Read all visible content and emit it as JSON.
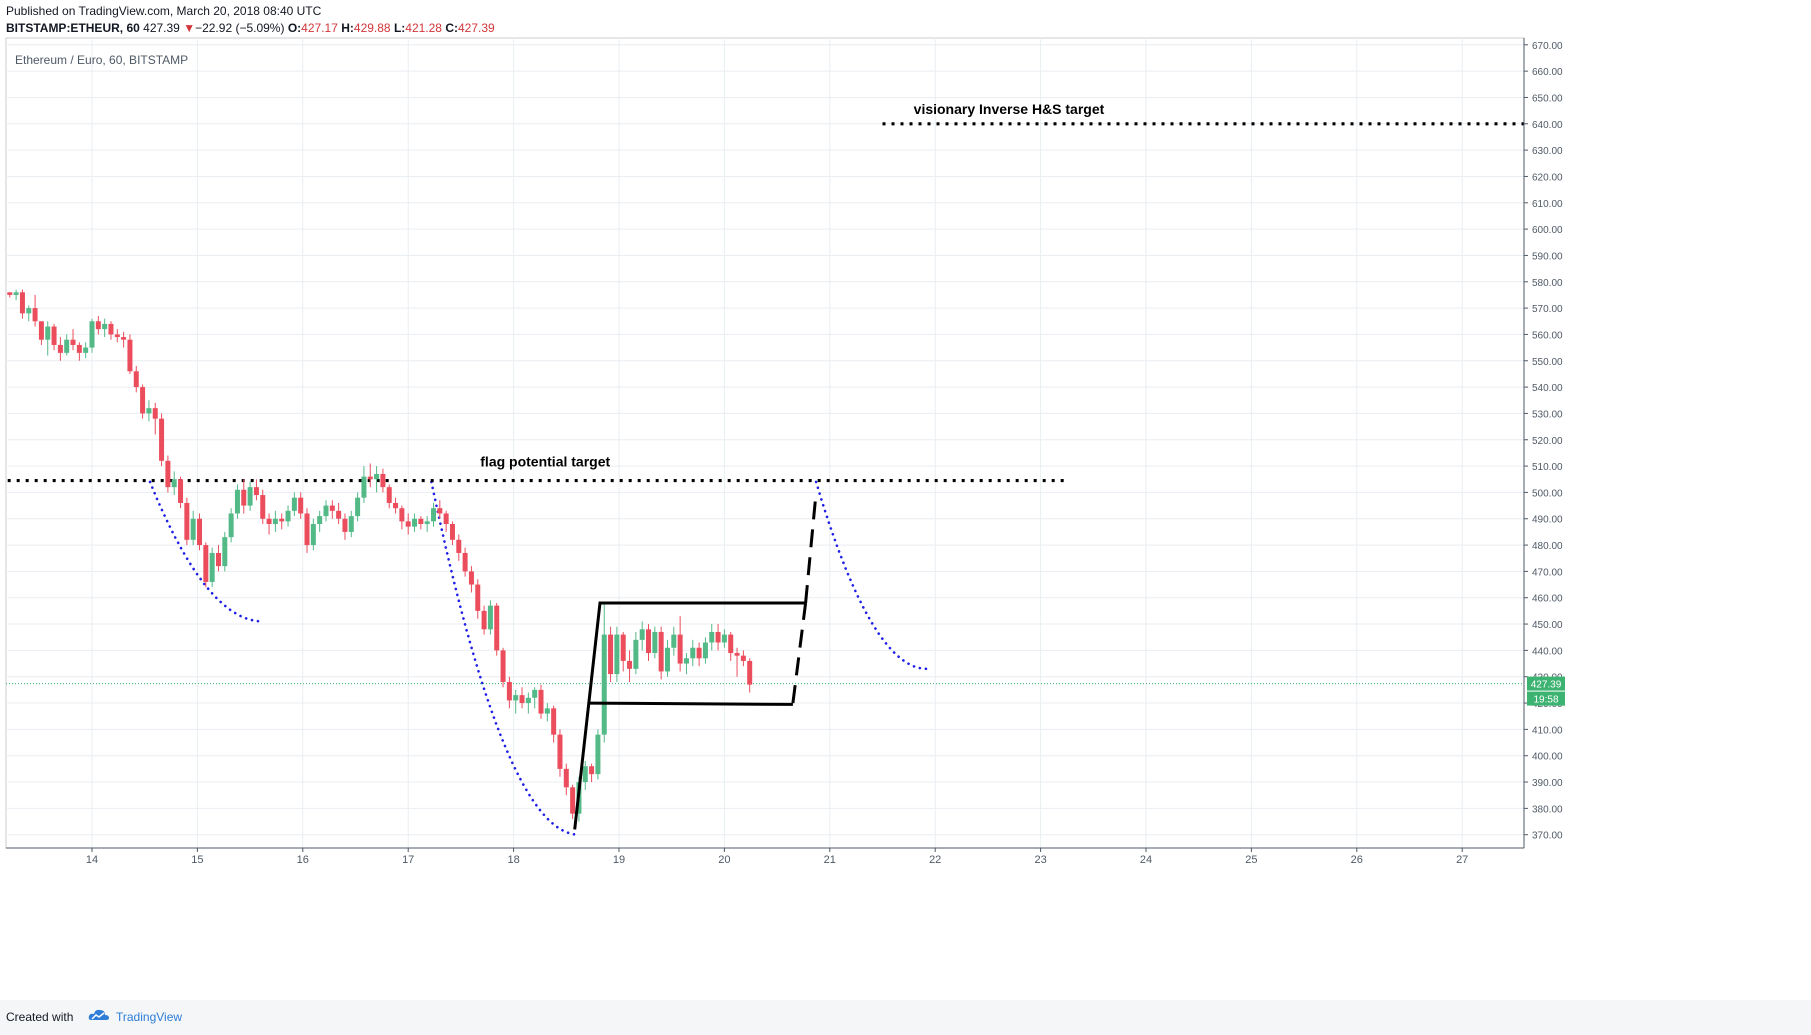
{
  "header": {
    "published": "Published on TradingView.com, March 20, 2018 08:40 UTC",
    "symbol": "BITSTAMP:ETHEUR, 60",
    "last": "427.39",
    "change_arrow": "▼",
    "change": "−22.92 (−5.09%)",
    "o_label": "O:",
    "o": "427.17",
    "h_label": "H:",
    "h": "429.88",
    "l_label": "L:",
    "l": "421.28",
    "c_label": "C:",
    "c": "427.39"
  },
  "footer": {
    "created_with": "Created with",
    "brand": "TradingView",
    "logo_icon": "tradingview-cloud-icon"
  },
  "colors": {
    "up": "#53b987",
    "down": "#eb4d5c",
    "grid": "#e9eef2",
    "axis_text": "#4f5966",
    "dotted_blue": "#1f1fe6",
    "drawing": "#000000",
    "price_tag": "#3cb371"
  },
  "chart_data": {
    "type": "candlestick",
    "title": "Ethereum / Euro, 60, BITSTAMP",
    "x_ticks": [
      "14",
      "15",
      "16",
      "17",
      "18",
      "19",
      "20",
      "21",
      "22",
      "23",
      "24",
      "25",
      "26",
      "27"
    ],
    "y_ticks": [
      "370.00",
      "380.00",
      "390.00",
      "400.00",
      "410.00",
      "420.00",
      "430.00",
      "440.00",
      "450.00",
      "460.00",
      "470.00",
      "480.00",
      "490.00",
      "500.00",
      "510.00",
      "520.00",
      "530.00",
      "540.00",
      "550.00",
      "560.00",
      "570.00",
      "580.00",
      "590.00",
      "600.00",
      "610.00",
      "620.00",
      "630.00",
      "640.00",
      "650.00",
      "660.00",
      "670.00"
    ],
    "ylim": [
      364,
      672
    ],
    "xlim": [
      13.2,
      27.6
    ],
    "last_price": "427.39",
    "countdown": "19:58",
    "annotations": [
      {
        "text": "visionary Inverse H&S target",
        "x": 22.7,
        "y": 643
      },
      {
        "text": "flag potential target",
        "x": 18.3,
        "y": 509
      }
    ],
    "levels": [
      {
        "name": "visionary-target-line",
        "y": 640,
        "x_from": 21.5,
        "x_to": 27.6
      },
      {
        "name": "flag-target-line",
        "y": 504.5,
        "x_from": 13.2,
        "x_to": 23.25
      }
    ],
    "ohlc": [
      [
        13.22,
        576,
        576,
        574,
        575
      ],
      [
        13.28,
        575,
        577,
        573,
        576
      ],
      [
        13.34,
        576,
        577,
        566,
        568
      ],
      [
        13.4,
        568,
        571,
        565,
        570
      ],
      [
        13.46,
        570,
        575,
        563,
        565
      ],
      [
        13.52,
        565,
        565,
        556,
        558
      ],
      [
        13.58,
        558,
        565,
        552,
        563
      ],
      [
        13.64,
        563,
        564,
        554,
        556
      ],
      [
        13.7,
        556,
        559,
        550,
        553
      ],
      [
        13.76,
        553,
        560,
        552,
        558
      ],
      [
        13.82,
        558,
        562,
        554,
        556
      ],
      [
        13.88,
        556,
        557,
        550,
        553
      ],
      [
        13.94,
        553,
        557,
        551,
        555
      ],
      [
        14.0,
        555,
        566,
        553,
        565
      ],
      [
        14.06,
        565,
        567,
        560,
        562
      ],
      [
        14.12,
        562,
        566,
        559,
        564
      ],
      [
        14.18,
        564,
        565,
        558,
        560
      ],
      [
        14.24,
        560,
        562,
        557,
        559
      ],
      [
        14.3,
        559,
        561,
        555,
        558
      ],
      [
        14.36,
        558,
        560,
        545,
        546
      ],
      [
        14.42,
        546,
        548,
        538,
        540
      ],
      [
        14.48,
        540,
        541,
        528,
        530
      ],
      [
        14.54,
        530,
        535,
        527,
        532
      ],
      [
        14.6,
        532,
        534,
        522,
        528
      ],
      [
        14.66,
        528,
        530,
        510,
        512
      ],
      [
        14.72,
        512,
        514,
        500,
        502
      ],
      [
        14.78,
        502,
        508,
        499,
        505
      ],
      [
        14.84,
        505,
        506,
        494,
        496
      ],
      [
        14.9,
        496,
        498,
        480,
        482
      ],
      [
        14.96,
        482,
        493,
        480,
        490
      ],
      [
        15.02,
        490,
        492,
        478,
        480
      ],
      [
        15.08,
        480,
        481,
        464,
        466
      ],
      [
        15.14,
        466,
        479,
        464,
        477
      ],
      [
        15.2,
        477,
        480,
        470,
        472
      ],
      [
        15.26,
        472,
        485,
        470,
        483
      ],
      [
        15.32,
        483,
        494,
        481,
        492
      ],
      [
        15.38,
        492,
        503,
        490,
        501
      ],
      [
        15.44,
        501,
        505,
        492,
        495
      ],
      [
        15.5,
        495,
        504,
        493,
        502
      ],
      [
        15.56,
        502,
        505,
        497,
        499
      ],
      [
        15.62,
        499,
        501,
        488,
        490
      ],
      [
        15.68,
        490,
        492,
        484,
        488
      ],
      [
        15.74,
        488,
        493,
        485,
        490
      ],
      [
        15.8,
        490,
        492,
        486,
        489
      ],
      [
        15.86,
        489,
        495,
        487,
        493
      ],
      [
        15.92,
        493,
        500,
        491,
        498
      ],
      [
        15.98,
        498,
        500,
        490,
        492
      ],
      [
        16.04,
        492,
        494,
        477,
        480
      ],
      [
        16.1,
        480,
        490,
        478,
        488
      ],
      [
        16.16,
        488,
        493,
        485,
        491
      ],
      [
        16.22,
        491,
        497,
        489,
        495
      ],
      [
        16.28,
        495,
        497,
        490,
        493
      ],
      [
        16.34,
        493,
        496,
        488,
        490
      ],
      [
        16.4,
        490,
        492,
        482,
        485
      ],
      [
        16.46,
        485,
        493,
        483,
        491
      ],
      [
        16.52,
        491,
        500,
        489,
        498
      ],
      [
        16.58,
        498,
        510,
        496,
        506
      ],
      [
        16.64,
        506,
        511,
        502,
        505
      ],
      [
        16.7,
        505,
        510,
        500,
        507
      ],
      [
        16.76,
        507,
        509,
        500,
        502
      ],
      [
        16.82,
        502,
        503,
        494,
        496
      ],
      [
        16.88,
        496,
        498,
        492,
        494
      ],
      [
        16.94,
        494,
        495,
        486,
        489
      ],
      [
        17.0,
        489,
        492,
        484,
        487
      ],
      [
        17.06,
        487,
        492,
        485,
        490
      ],
      [
        17.12,
        490,
        491,
        486,
        488
      ],
      [
        17.18,
        488,
        491,
        485,
        489
      ],
      [
        17.24,
        489,
        496,
        487,
        494
      ],
      [
        17.3,
        494,
        497,
        490,
        492
      ],
      [
        17.36,
        492,
        493,
        485,
        488
      ],
      [
        17.42,
        488,
        489,
        480,
        482
      ],
      [
        17.48,
        482,
        484,
        474,
        477
      ],
      [
        17.54,
        477,
        479,
        468,
        470
      ],
      [
        17.6,
        470,
        472,
        462,
        465
      ],
      [
        17.66,
        465,
        467,
        452,
        455
      ],
      [
        17.72,
        455,
        457,
        446,
        448
      ],
      [
        17.78,
        448,
        459,
        446,
        457
      ],
      [
        17.84,
        457,
        458,
        438,
        440
      ],
      [
        17.9,
        440,
        441,
        426,
        428
      ],
      [
        17.96,
        428,
        430,
        418,
        421
      ],
      [
        18.02,
        421,
        425,
        416,
        423
      ],
      [
        18.08,
        423,
        426,
        418,
        420
      ],
      [
        18.14,
        420,
        424,
        416,
        422
      ],
      [
        18.2,
        422,
        426,
        418,
        425
      ],
      [
        18.26,
        425,
        427,
        414,
        416
      ],
      [
        18.32,
        416,
        420,
        413,
        418
      ],
      [
        18.38,
        418,
        419,
        405,
        408
      ],
      [
        18.44,
        408,
        410,
        392,
        395
      ],
      [
        18.5,
        395,
        397,
        385,
        388
      ],
      [
        18.56,
        388,
        389,
        376,
        378
      ],
      [
        18.62,
        378,
        392,
        375,
        390
      ],
      [
        18.68,
        390,
        398,
        387,
        396
      ],
      [
        18.74,
        396,
        397,
        390,
        393
      ],
      [
        18.8,
        393,
        410,
        391,
        408
      ],
      [
        18.86,
        408,
        458,
        405,
        446
      ],
      [
        18.92,
        446,
        449,
        428,
        431
      ],
      [
        18.98,
        431,
        449,
        428,
        446
      ],
      [
        19.04,
        446,
        447,
        432,
        436
      ],
      [
        19.1,
        436,
        440,
        428,
        433
      ],
      [
        19.16,
        433,
        447,
        431,
        444
      ],
      [
        19.22,
        444,
        451,
        440,
        448
      ],
      [
        19.28,
        448,
        450,
        436,
        439
      ],
      [
        19.34,
        439,
        449,
        437,
        447
      ],
      [
        19.4,
        447,
        449,
        429,
        432
      ],
      [
        19.46,
        432,
        444,
        430,
        441
      ],
      [
        19.52,
        441,
        449,
        438,
        446
      ],
      [
        19.58,
        446,
        453,
        432,
        435
      ],
      [
        19.64,
        435,
        439,
        431,
        437
      ],
      [
        19.7,
        437,
        444,
        434,
        441
      ],
      [
        19.76,
        441,
        443,
        434,
        437
      ],
      [
        19.82,
        437,
        445,
        435,
        443
      ],
      [
        19.88,
        443,
        450,
        440,
        447
      ],
      [
        19.94,
        447,
        450,
        440,
        443
      ],
      [
        20.0,
        443,
        448,
        441,
        446
      ],
      [
        20.06,
        446,
        447,
        436,
        439
      ],
      [
        20.12,
        439,
        441,
        430,
        438
      ],
      [
        20.18,
        438,
        440,
        434,
        436
      ],
      [
        20.24,
        436,
        437,
        424,
        427
      ]
    ]
  }
}
